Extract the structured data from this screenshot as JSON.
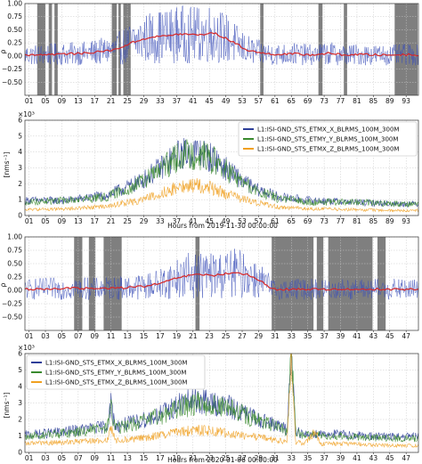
{
  "chart_data": [
    {
      "type": "line",
      "ylabel": "ρ",
      "ylim": [
        -0.75,
        1.0
      ],
      "yticks": [
        -0.5,
        -0.25,
        0,
        0.25,
        0.5,
        0.75,
        1
      ],
      "ytick_labels": [
        "−0.50",
        "−0.25",
        "0.00",
        "0.25",
        "0.50",
        "0.75",
        "1.00"
      ],
      "xlim": [
        0,
        96
      ],
      "xtick_labels": [
        "01",
        "05",
        "09",
        "13",
        "17",
        "21",
        "25",
        "29",
        "33",
        "37",
        "41",
        "45",
        "49",
        "53",
        "57",
        "61",
        "65",
        "69",
        "73",
        "77",
        "81",
        "85",
        "89",
        "93"
      ],
      "grid": true,
      "colors": {
        "raw": "#3b4fb8",
        "smooth": "#d62728",
        "mask": "#7f7f7f"
      },
      "masked_hours": [
        [
          3,
          5
        ],
        [
          5.8,
          6.6
        ],
        [
          7.2,
          8.0
        ],
        [
          21.2,
          22.4
        ],
        [
          22.8,
          23.4
        ],
        [
          24.0,
          25.8
        ],
        [
          57.4,
          58.2
        ],
        [
          71.6,
          72.6
        ],
        [
          77.8,
          78.6
        ],
        [
          90.2,
          95.8
        ]
      ],
      "series": [
        {
          "x": [
            0,
            6,
            10,
            14,
            18,
            22,
            26,
            30,
            34,
            38,
            42,
            46,
            50,
            54,
            58,
            62,
            66,
            70,
            74,
            78,
            82,
            86,
            90,
            94
          ],
          "values": [
            0.02,
            0.03,
            0.04,
            0.05,
            0.08,
            0.12,
            0.25,
            0.35,
            0.38,
            0.42,
            0.4,
            0.44,
            0.3,
            0.12,
            0.05,
            0.03,
            0.04,
            0.02,
            0.05,
            0.02,
            0.03,
            0.02,
            0.02,
            0.03
          ]
        }
      ]
    },
    {
      "type": "line",
      "ylabel": "[nms⁻¹]",
      "yscale_label": "×10³",
      "ylim": [
        0,
        6
      ],
      "yticks": [
        0,
        1,
        2,
        3,
        4,
        5,
        6
      ],
      "xlim": [
        0,
        96
      ],
      "xlabel": "Hours from 2019-11-30 00:00:00",
      "xtick_labels": [
        "01",
        "05",
        "09",
        "13",
        "17",
        "21",
        "25",
        "29",
        "33",
        "37",
        "41",
        "45",
        "49",
        "53",
        "57",
        "61",
        "65",
        "69",
        "73",
        "77",
        "81",
        "85",
        "89",
        "93"
      ],
      "grid": true,
      "legend": "top-right",
      "series": [
        {
          "name": "L1:ISI-GND_STS_ETMX_X_BLRMS_100M_300M",
          "color": "#2e3f99",
          "x": [
            0,
            10,
            20,
            28,
            34,
            38,
            42,
            46,
            50,
            56,
            62,
            70,
            80,
            90,
            95
          ],
          "values": [
            0.9,
            0.9,
            1.2,
            2.0,
            3.0,
            3.7,
            3.8,
            3.4,
            2.6,
            1.6,
            1.1,
            0.9,
            0.8,
            0.7,
            0.7
          ]
        },
        {
          "name": "L1:ISI-GND_STS_ETMY_Y_BLRMS_100M_300M",
          "color": "#3a8a2e",
          "x": [
            0,
            10,
            20,
            28,
            34,
            38,
            42,
            46,
            50,
            56,
            62,
            70,
            80,
            90,
            95
          ],
          "values": [
            0.8,
            0.9,
            1.1,
            1.9,
            2.9,
            3.6,
            3.7,
            3.3,
            2.5,
            1.5,
            1.0,
            0.8,
            0.8,
            0.7,
            0.7
          ]
        },
        {
          "name": "L1:ISI-GND_STS_ETMX_Z_BLRMS_100M_300M",
          "color": "#f0a020",
          "x": [
            0,
            10,
            20,
            28,
            34,
            38,
            42,
            46,
            50,
            56,
            62,
            70,
            80,
            90,
            95
          ],
          "values": [
            0.35,
            0.4,
            0.55,
            0.9,
            1.4,
            1.7,
            1.8,
            1.6,
            1.2,
            0.8,
            0.5,
            0.4,
            0.35,
            0.3,
            0.3
          ]
        }
      ]
    },
    {
      "type": "line",
      "ylabel": "ρ",
      "ylim": [
        -0.75,
        1.0
      ],
      "yticks": [
        -0.5,
        -0.25,
        0,
        0.25,
        0.5,
        0.75,
        1
      ],
      "ytick_labels": [
        "−0.50",
        "−0.25",
        "0.00",
        "0.25",
        "0.50",
        "0.75",
        "1.00"
      ],
      "xlim": [
        0,
        48
      ],
      "xtick_labels": [
        "01",
        "03",
        "05",
        "07",
        "09",
        "11",
        "13",
        "15",
        "17",
        "19",
        "21",
        "23",
        "25",
        "27",
        "29",
        "31",
        "33",
        "35",
        "37",
        "39",
        "41",
        "43",
        "45",
        "47"
      ],
      "grid": true,
      "colors": {
        "raw": "#3b4fb8",
        "smooth": "#d62728",
        "mask": "#7f7f7f"
      },
      "masked_hours": [
        [
          6.0,
          7.0
        ],
        [
          7.8,
          8.6
        ],
        [
          9.6,
          11.8
        ],
        [
          20.8,
          21.3
        ],
        [
          30.1,
          35.2
        ],
        [
          35.6,
          36.4
        ],
        [
          37.0,
          42.4
        ],
        [
          43.0,
          44.0
        ]
      ],
      "series": [
        {
          "x": [
            0,
            3,
            6,
            9,
            12,
            15,
            17,
            19,
            21,
            23,
            25,
            27,
            29,
            30
          ],
          "values": [
            0.02,
            0.03,
            0.04,
            0.03,
            0.05,
            0.08,
            0.15,
            0.25,
            0.3,
            0.28,
            0.32,
            0.3,
            0.15,
            0.05
          ]
        }
      ]
    },
    {
      "type": "line",
      "ylabel": "[nms⁻¹]",
      "yscale_label": "×10³",
      "ylim": [
        0,
        6
      ],
      "yticks": [
        0,
        1,
        2,
        3,
        4,
        5,
        6
      ],
      "xlim": [
        0,
        48
      ],
      "xlabel": "Hours from 2020-01-06 00:00:00",
      "xtick_labels": [
        "01",
        "03",
        "05",
        "07",
        "09",
        "11",
        "13",
        "15",
        "17",
        "19",
        "21",
        "23",
        "25",
        "27",
        "29",
        "31",
        "33",
        "35",
        "37",
        "39",
        "41",
        "43",
        "45",
        "47"
      ],
      "grid": true,
      "legend": "top-left",
      "series": [
        {
          "name": "L1:ISI-GND_STS_ETMX_X_BLRMS_100M_300M",
          "color": "#2e3f99",
          "x": [
            0,
            5,
            10,
            10.5,
            11,
            14,
            17,
            19,
            21,
            23,
            25,
            28,
            31,
            32,
            32.5,
            33,
            34,
            36,
            40,
            44,
            47.5
          ],
          "values": [
            1.0,
            1.2,
            1.5,
            2.8,
            1.5,
            1.8,
            2.3,
            2.8,
            3.0,
            2.8,
            2.6,
            2.0,
            1.5,
            1.3,
            6.0,
            1.3,
            1.0,
            1.1,
            1.0,
            0.9,
            0.9
          ]
        },
        {
          "name": "L1:ISI-GND_STS_ETMY_Y_BLRMS_100M_300M",
          "color": "#3a8a2e",
          "x": [
            0,
            5,
            10,
            10.5,
            11,
            14,
            17,
            19,
            21,
            23,
            25,
            28,
            31,
            32,
            32.5,
            33,
            34,
            36,
            40,
            44,
            47.5
          ],
          "values": [
            0.9,
            1.1,
            1.4,
            2.6,
            1.4,
            1.7,
            2.2,
            2.6,
            2.9,
            2.7,
            2.5,
            1.9,
            1.4,
            1.2,
            6.0,
            1.2,
            1.0,
            1.0,
            0.9,
            0.8,
            0.8
          ]
        },
        {
          "name": "L1:ISI-GND_STS_ETMX_Z_BLRMS_100M_300M",
          "color": "#f0a020",
          "x": [
            0,
            5,
            10,
            10.5,
            11,
            14,
            17,
            19,
            21,
            23,
            25,
            28,
            31,
            32,
            32.5,
            33,
            34,
            35.5,
            36,
            40,
            44,
            47.5
          ],
          "values": [
            0.5,
            0.6,
            0.7,
            1.4,
            0.7,
            0.8,
            1.0,
            1.2,
            1.3,
            1.2,
            1.1,
            0.9,
            0.7,
            0.6,
            6.0,
            0.6,
            0.5,
            1.2,
            0.5,
            0.5,
            0.4,
            0.4
          ]
        }
      ]
    }
  ]
}
